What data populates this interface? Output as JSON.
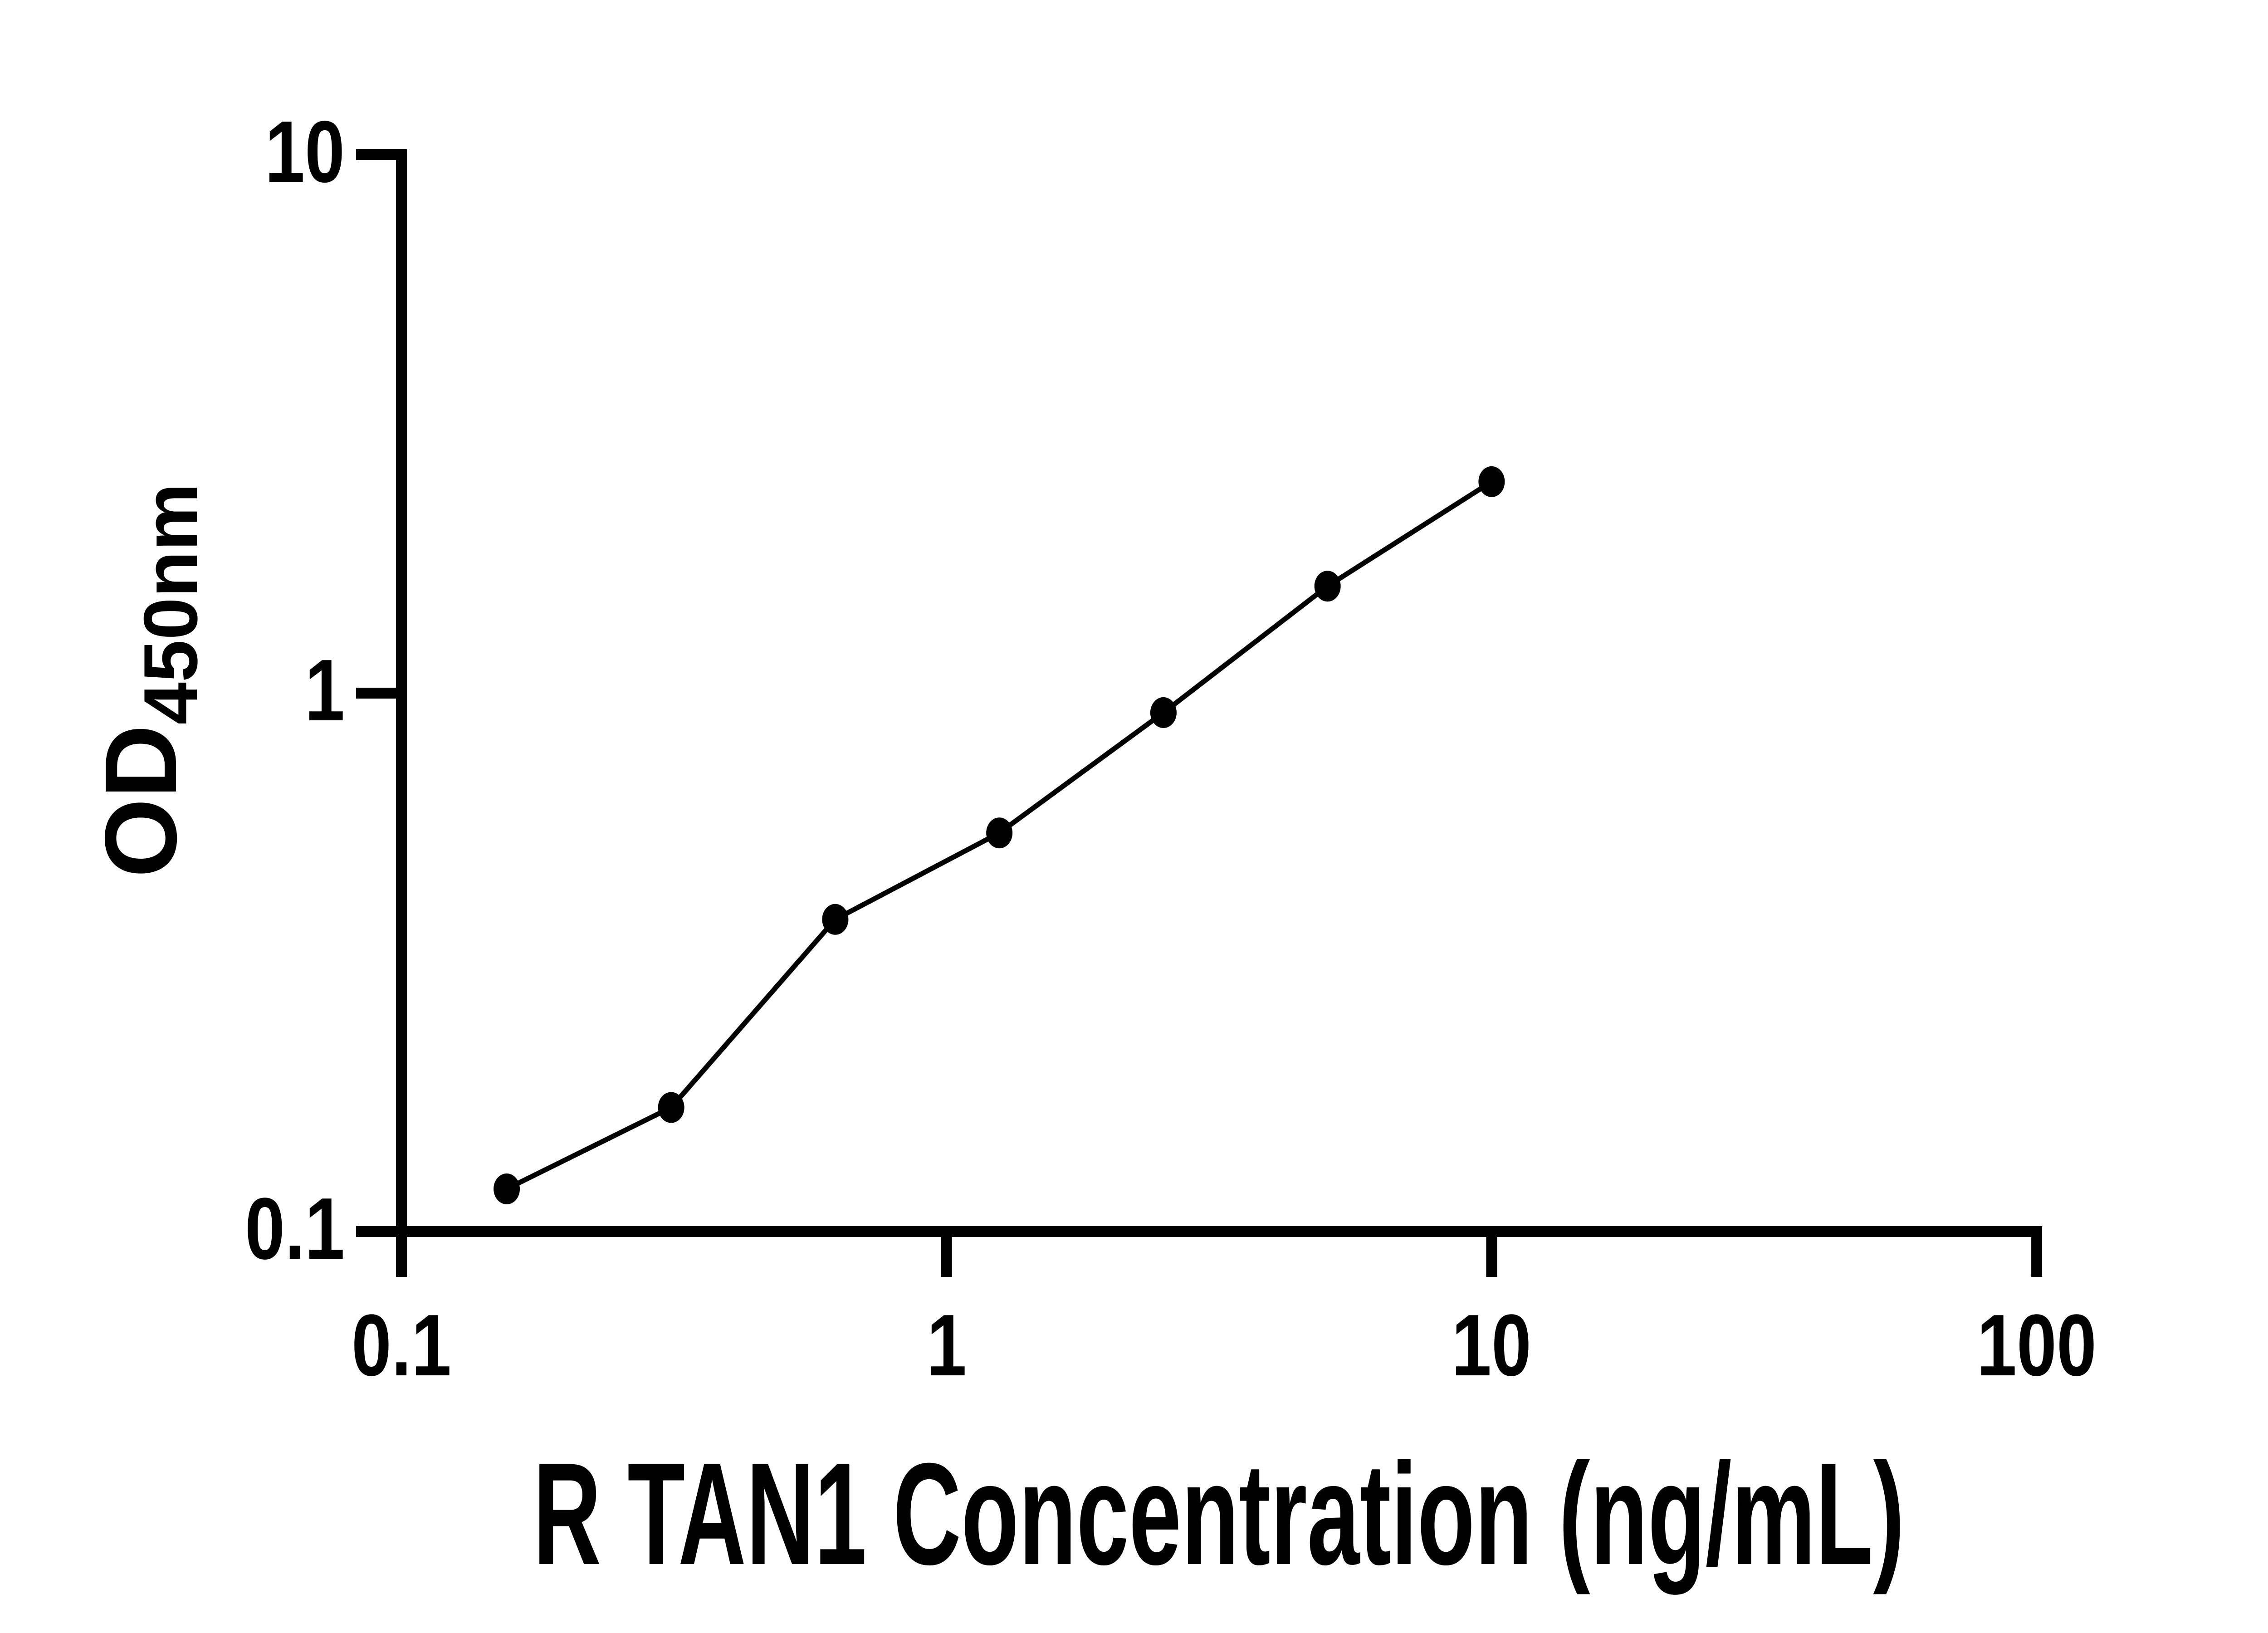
{
  "figure": {
    "background": "#ffffff",
    "ink_color": "#000000"
  },
  "chart_data": {
    "type": "scatter",
    "title": "",
    "xlabel": "R TAN1 Concentration (ng/mL)",
    "ylabel": {
      "main": "OD",
      "sub": "450nm"
    },
    "x_scale": "log",
    "y_scale": "log",
    "xlim": [
      0.1,
      100
    ],
    "ylim": [
      0.1,
      10
    ],
    "grid": false,
    "legend": null,
    "marker_style": "filled-black-circle",
    "line_style": "solid-thin-fit-line-through-points",
    "x": [
      0.156,
      0.3125,
      0.625,
      1.25,
      2.5,
      5,
      10
    ],
    "y": [
      0.12,
      0.17,
      0.38,
      0.55,
      0.92,
      1.58,
      2.47
    ],
    "x_ticks": [
      {
        "value": 0.1,
        "label": "0.1"
      },
      {
        "value": 1,
        "label": "1"
      },
      {
        "value": 10,
        "label": "10"
      },
      {
        "value": 100,
        "label": "100"
      }
    ],
    "y_ticks": [
      {
        "value": 10,
        "label": "10"
      },
      {
        "value": 1,
        "label": "1"
      },
      {
        "value": 0.1,
        "label": "0.1"
      }
    ]
  }
}
